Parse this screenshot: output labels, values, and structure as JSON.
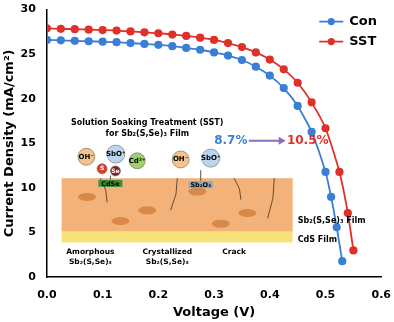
{
  "chart_data": {
    "type": "line",
    "x_label": "Voltage (V)",
    "y_label": "Current Density (mA/cm²)",
    "xlim": [
      0,
      0.6
    ],
    "xticks": [
      {
        "value": 0,
        "label": "0.0"
      },
      0.1,
      0.2,
      0.3,
      0.4,
      0.5,
      0.6
    ],
    "ylim": [
      0,
      30
    ],
    "yticks": [
      0,
      5,
      10,
      15,
      20,
      25,
      30
    ],
    "legend": "upper right",
    "marker": "circle",
    "annotations": [
      "8.7%",
      "10.5%"
    ],
    "series": [
      {
        "name": "Con",
        "color": "#3a7fd5",
        "x": [
          0,
          0.025,
          0.05,
          0.075,
          0.1,
          0.125,
          0.15,
          0.175,
          0.2,
          0.225,
          0.25,
          0.275,
          0.3,
          0.325,
          0.35,
          0.375,
          0.4,
          0.425,
          0.45,
          0.475,
          0.5,
          0.51,
          0.52,
          0.53
        ],
        "values": [
          26.6,
          26.55,
          26.5,
          26.45,
          26.4,
          26.35,
          26.25,
          26.15,
          26.05,
          25.9,
          25.7,
          25.5,
          25.2,
          24.85,
          24.35,
          23.6,
          22.6,
          21.2,
          19.2,
          16.3,
          11.8,
          9.0,
          5.6,
          1.8
        ]
      },
      {
        "name": "SST",
        "color": "#e0302a",
        "x": [
          0,
          0.025,
          0.05,
          0.075,
          0.1,
          0.125,
          0.15,
          0.175,
          0.2,
          0.225,
          0.25,
          0.275,
          0.3,
          0.325,
          0.35,
          0.375,
          0.4,
          0.425,
          0.45,
          0.475,
          0.5,
          0.525,
          0.54,
          0.55
        ],
        "values": [
          27.9,
          27.85,
          27.8,
          27.75,
          27.7,
          27.65,
          27.55,
          27.45,
          27.35,
          27.2,
          27.05,
          26.85,
          26.6,
          26.25,
          25.8,
          25.2,
          24.4,
          23.3,
          21.8,
          19.6,
          16.7,
          11.8,
          7.2,
          3.0
        ]
      }
    ]
  },
  "inset": {
    "title": [
      "Solution Soaking Treatment (SST)",
      "for Sb₂(S,Se)₃ Film"
    ],
    "ions": [
      "OH⁻",
      "SbO⁺",
      "S",
      "Se",
      "Cd²⁺",
      "OH⁻",
      "SbO⁺"
    ],
    "products": [
      "CdSe",
      "Sb₂O₃"
    ],
    "layers": [
      "Sb₂(S,Se)₃ Film",
      "CdS Film"
    ],
    "callouts": [
      [
        "Amorphous",
        "Sb₂(S,Se)₃"
      ],
      [
        "Crystallized",
        "Sb₂(S,Se)₃"
      ],
      [
        "Crack"
      ]
    ]
  }
}
